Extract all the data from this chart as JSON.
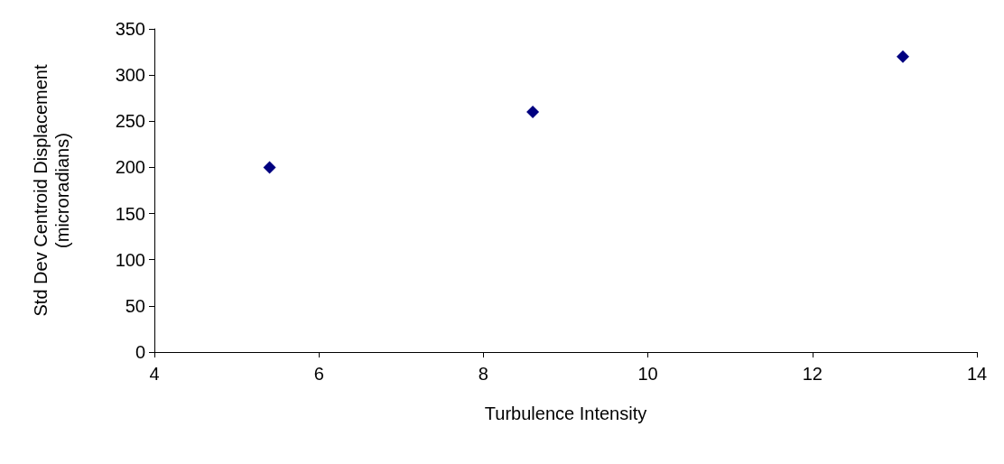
{
  "chart_data": {
    "type": "scatter",
    "xlabel": "Turbulence Intensity",
    "ylabel": "Std Dev Centroid Displacement (microradians)",
    "x": [
      5.4,
      8.6,
      13.1
    ],
    "series": [
      {
        "color": "#000080",
        "values": [
          200,
          260,
          320
        ]
      }
    ],
    "xlim": [
      4,
      14
    ],
    "xticks": [
      4,
      6,
      8,
      10,
      12,
      14
    ],
    "ylim": [
      0,
      350
    ],
    "yticks": [
      0,
      50,
      100,
      150,
      200,
      250,
      300,
      350
    ],
    "grid": false,
    "marker": "diamond"
  }
}
